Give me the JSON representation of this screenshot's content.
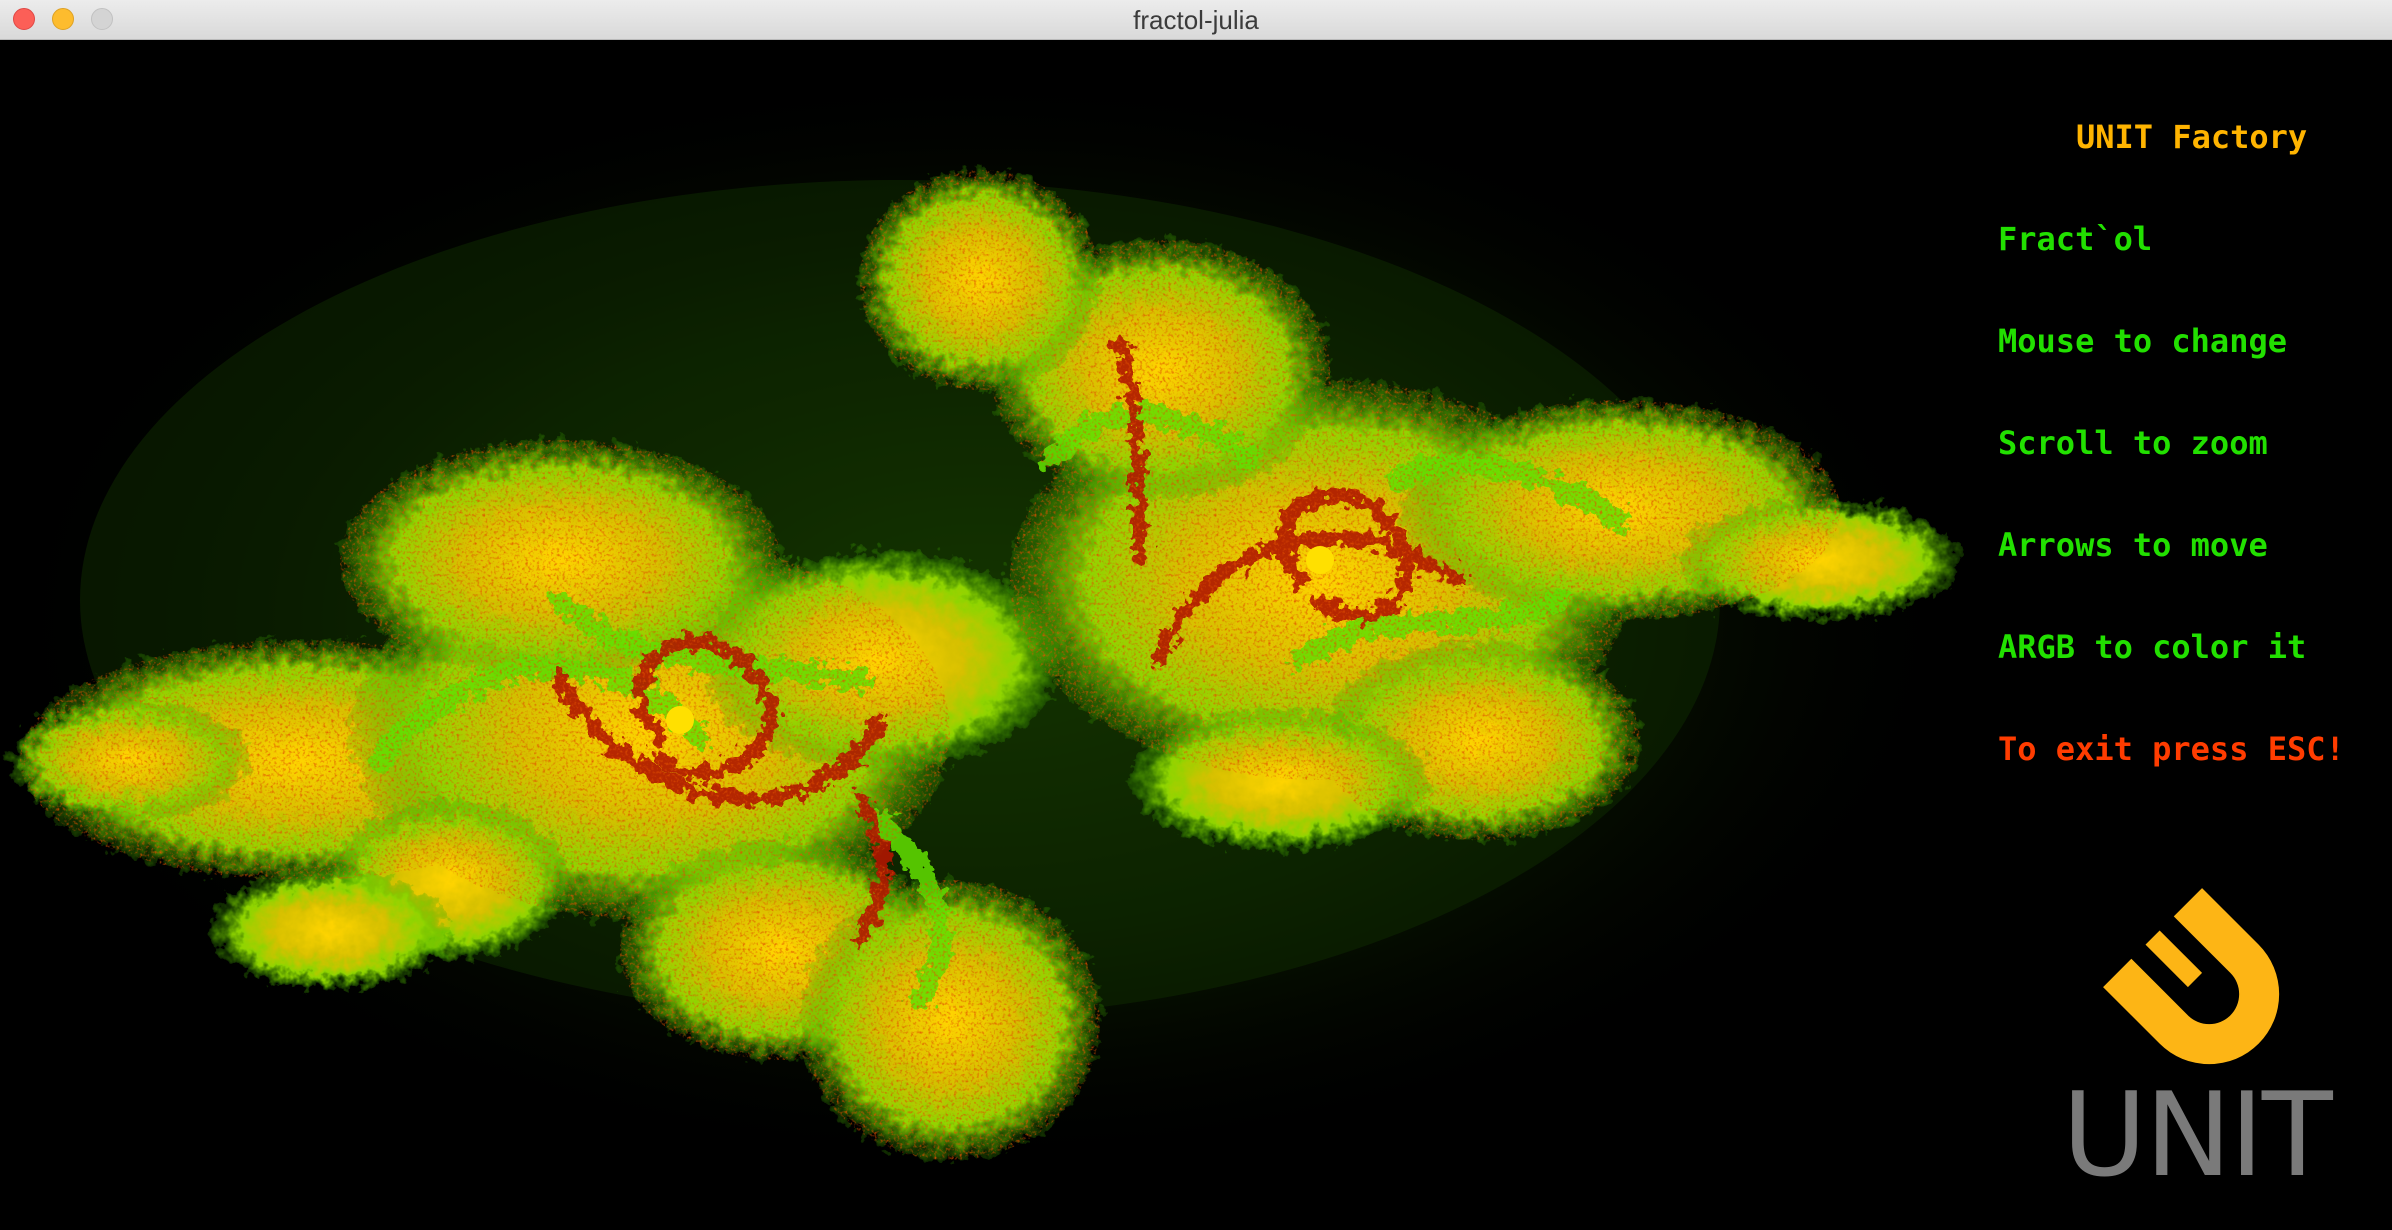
{
  "window": {
    "title": "fractol-julia"
  },
  "help": {
    "brand": "UNIT Factory",
    "lines": [
      {
        "text": "Fract`ol",
        "color": "#22e000"
      },
      {
        "text": "Mouse to change",
        "color": "#22e000"
      },
      {
        "text": "Scroll to zoom",
        "color": "#22e000"
      },
      {
        "text": "Arrows to move",
        "color": "#22e000"
      },
      {
        "text": "ARGB to color it",
        "color": "#22e000"
      },
      {
        "text": "To exit press ESC!",
        "color": "#ff3c00"
      }
    ],
    "brand_color": "#ffb400"
  },
  "logo": {
    "text": "UNIT",
    "mark_color": "#fdb515",
    "text_color": "#7a7a7a"
  },
  "fractal": {
    "palette": [
      "#000000",
      "#1a3a00",
      "#3fbf00",
      "#ffd400",
      "#c01000"
    ],
    "icon": "julia-set-fractal"
  }
}
